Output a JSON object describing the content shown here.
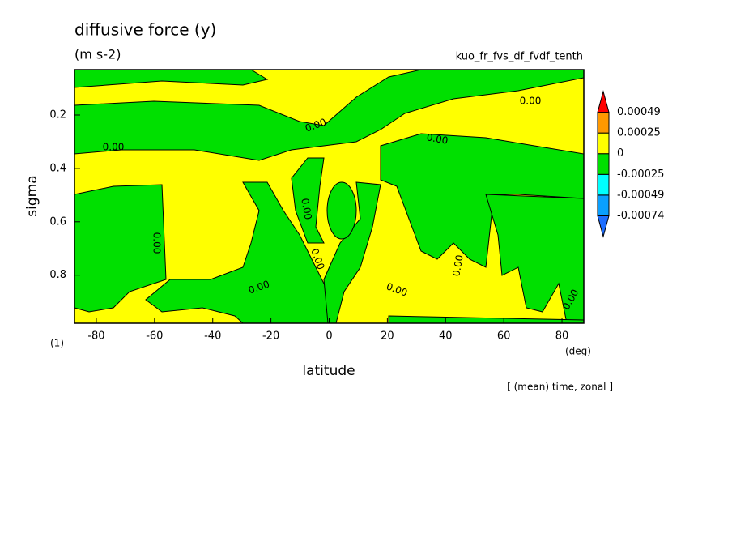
{
  "chart_data": {
    "type": "contour",
    "title": "diffusive force (y)",
    "subtitle": "(m s-2)",
    "run_name": "kuo_fr_fvs_df_fvdf_tenth",
    "x_label": "latitude",
    "y_label": "sigma",
    "x_unit": "(deg)",
    "y_unit": "(1)",
    "annotation": "[ (mean) time, zonal ]",
    "xlim": [
      -87.5,
      87.5
    ],
    "xticks": [
      -80,
      -60,
      -40,
      -20,
      0,
      20,
      40,
      60,
      80
    ],
    "ylim": [
      0.03,
      0.98
    ],
    "yticks": [
      0.2,
      0.4,
      0.6,
      0.8
    ],
    "contour_labels": [
      "0.00",
      "0.00",
      "0.00",
      "0.00",
      "0.00",
      "0.00",
      "0.00",
      "0.00",
      "0.00",
      "0.00",
      "0.00"
    ],
    "colorbar": {
      "levels": [
        -0.00074,
        -0.00049,
        -0.00025,
        0,
        0.00025,
        0.00049
      ],
      "colors": [
        "#1e6eff",
        "#0aa0ff",
        "#00ffff",
        "#00e000",
        "#ffff00",
        "#ff9900",
        "#ff0000"
      ]
    }
  }
}
